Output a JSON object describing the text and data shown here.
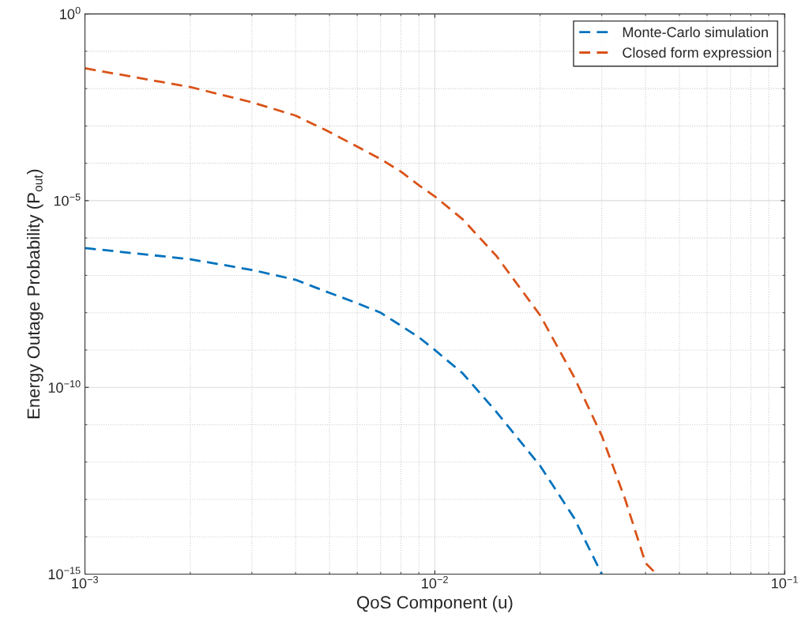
{
  "chart_data": {
    "type": "line",
    "xlabel": "QoS Component (u)",
    "ylabel": "Energy Outage Probability (P$_{out}$)",
    "log": "xy",
    "grid": true,
    "legend": "top right",
    "line_style": "dashed",
    "marker": "none",
    "xlim": [
      0.001,
      0.1
    ],
    "ylim": [
      1e-15,
      1
    ],
    "xticks": [
      {
        "value": 0.001,
        "label": "10$^{−3}$"
      },
      {
        "value": 0.01,
        "label": "10$^{−2}$"
      },
      {
        "value": 0.1,
        "label": "10$^{−1}$"
      }
    ],
    "yticks": [
      {
        "value": 1e-15,
        "label": "10$^{−15}$"
      },
      {
        "value": 1e-10,
        "label": "10$^{−10}$"
      },
      {
        "value": 1e-05,
        "label": "10$^{−5}$"
      },
      {
        "value": 1,
        "label": "10$^{0}$"
      }
    ],
    "series": [
      {
        "name": "Monte-Carlo simulation",
        "color": "#0072bd",
        "x": [
          0.001,
          0.002,
          0.003,
          0.004,
          0.005,
          0.006,
          0.007,
          0.008,
          0.009,
          0.01,
          0.012,
          0.015,
          0.02,
          0.025,
          0.03
        ],
        "values": [
          5.4e-07,
          2.7e-07,
          1.4e-07,
          7.6e-08,
          3.4e-08,
          1.8e-08,
          1e-08,
          4.5e-09,
          2.2e-09,
          1e-09,
          2.4e-10,
          2.2e-11,
          7.9e-13,
          3.2e-14,
          1e-15
        ]
      },
      {
        "name": "Closed form expression",
        "color": "#d95319",
        "x": [
          0.001,
          0.002,
          0.003,
          0.004,
          0.005,
          0.006,
          0.007,
          0.008,
          0.009,
          0.01,
          0.012,
          0.015,
          0.02,
          0.025,
          0.03,
          0.035,
          0.04,
          0.043
        ],
        "values": [
          0.035,
          0.011,
          0.0043,
          0.0019,
          0.00069,
          0.00028,
          0.00013,
          6e-05,
          2.6e-05,
          1.3e-05,
          3.2e-06,
          3.3e-07,
          8.5e-09,
          1.9e-10,
          5.1e-12,
          1e-13,
          2e-15,
          1e-15
        ]
      }
    ]
  }
}
